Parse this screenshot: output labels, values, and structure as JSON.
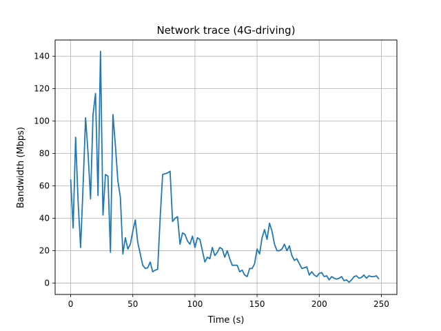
{
  "chart_data": {
    "type": "line",
    "title": "Network trace (4G-driving)",
    "xlabel": "Time (s)",
    "ylabel": "Bandwidth (Mbps)",
    "xlim": [
      -12.5,
      262.5
    ],
    "ylim": [
      -7,
      150
    ],
    "xticks": [
      0,
      50,
      100,
      150,
      200,
      250
    ],
    "yticks": [
      0,
      20,
      40,
      60,
      80,
      100,
      120,
      140
    ],
    "grid": true,
    "line_color": "#1f77b4",
    "series": [
      {
        "x": [
          0,
          2,
          4,
          6,
          8,
          10,
          12,
          14,
          16,
          18,
          20,
          22,
          24,
          26,
          28,
          30,
          32,
          34,
          36,
          38,
          40,
          42,
          44,
          46,
          48,
          50,
          52,
          54,
          56,
          58,
          60,
          62,
          64,
          66,
          68,
          70,
          72,
          74,
          76,
          78,
          80,
          82,
          84,
          86,
          88,
          90,
          92,
          94,
          96,
          98,
          100,
          102,
          104,
          106,
          108,
          110,
          112,
          114,
          116,
          118,
          120,
          122,
          124,
          126,
          128,
          130,
          132,
          134,
          136,
          138,
          140,
          142,
          144,
          146,
          148,
          150,
          152,
          154,
          156,
          158,
          160,
          162,
          164,
          166,
          168,
          170,
          172,
          174,
          176,
          178,
          180,
          182,
          184,
          186,
          188,
          190,
          192,
          194,
          196,
          198,
          200,
          202,
          204,
          206,
          208,
          210,
          212,
          214,
          216,
          218,
          220,
          222,
          224,
          226,
          228,
          230,
          232,
          234,
          236,
          238,
          240,
          242,
          244,
          246,
          248
        ],
        "y": [
          64,
          34,
          90,
          50,
          22,
          60,
          102,
          80,
          52,
          104,
          117,
          54,
          143,
          42,
          67,
          66,
          19,
          104,
          85,
          63,
          53,
          18,
          28,
          21,
          24,
          32,
          39,
          25,
          18,
          11,
          9,
          9.5,
          13,
          7,
          8,
          8.5,
          40,
          67,
          67.5,
          68,
          69,
          38,
          40,
          41,
          24,
          31,
          30,
          26,
          24,
          29,
          22,
          28,
          27,
          20,
          13,
          16,
          15,
          22,
          17,
          19,
          22,
          21,
          16,
          20,
          15,
          11,
          11,
          11,
          7,
          8,
          5,
          4,
          9,
          9,
          12,
          21,
          18,
          28,
          33,
          27,
          37,
          32,
          24,
          20,
          20,
          21,
          24,
          20,
          23,
          17,
          14,
          15,
          12,
          9,
          9.5,
          10,
          5,
          7,
          5,
          4,
          6,
          6.5,
          4,
          4.5,
          2,
          4,
          3,
          2.5,
          3,
          4,
          1.5,
          2,
          0.5,
          2,
          4,
          4.5,
          3,
          3.5,
          5,
          3,
          4.5,
          4,
          4,
          4.5,
          2.5
        ]
      }
    ]
  }
}
